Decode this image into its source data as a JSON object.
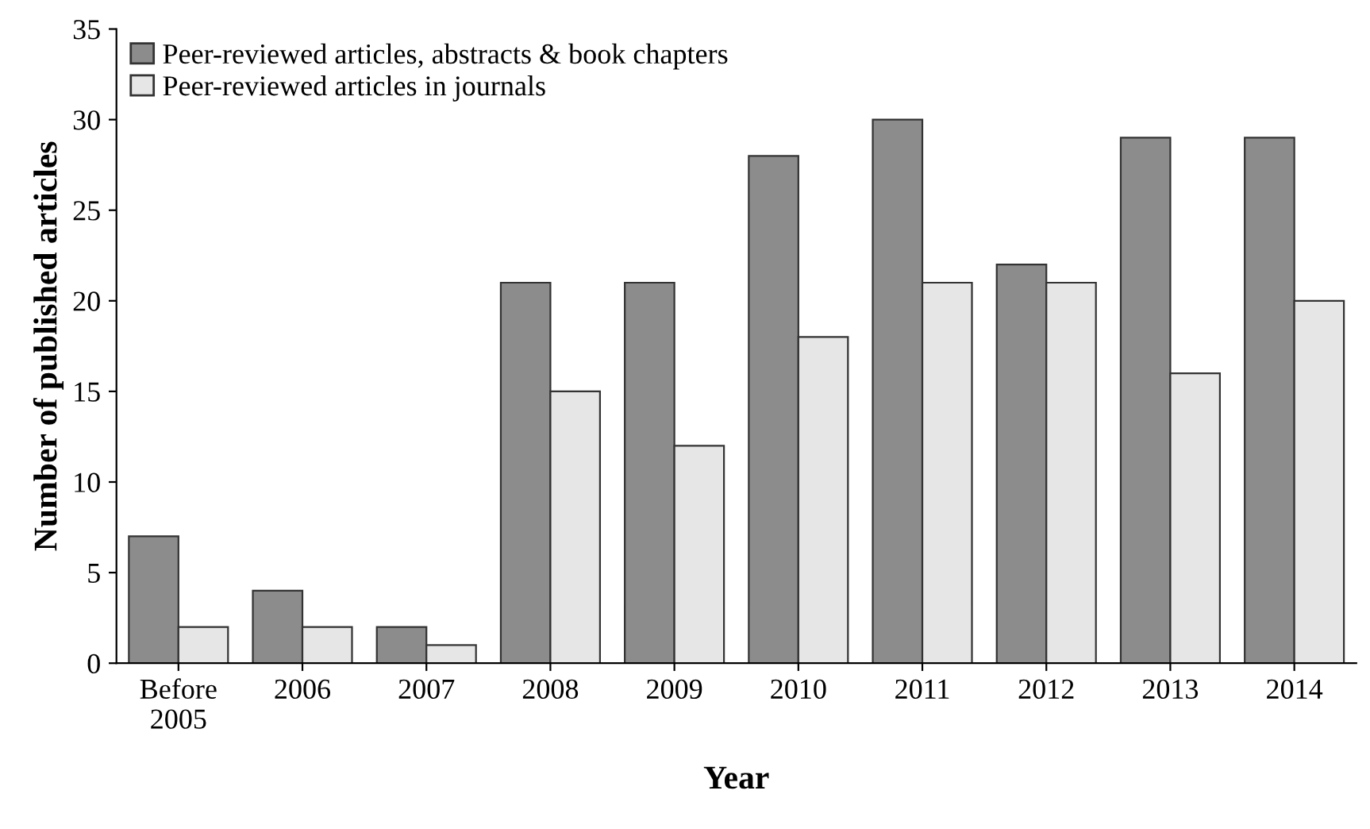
{
  "chart_data": {
    "type": "bar",
    "xlabel": "Year",
    "ylabel": "Number of published articles",
    "categories": [
      "Before\n2005",
      "2006",
      "2007",
      "2008",
      "2009",
      "2010",
      "2011",
      "2012",
      "2013",
      "2014"
    ],
    "series": [
      {
        "name": "Peer-reviewed articles, abstracts & book chapters",
        "color": "#8c8c8c",
        "values": [
          7,
          4,
          2,
          21,
          21,
          28,
          30,
          22,
          29,
          29
        ]
      },
      {
        "name": "Peer-reviewed articles in journals",
        "color": "#e6e6e6",
        "values": [
          2,
          2,
          1,
          15,
          12,
          18,
          21,
          21,
          16,
          20
        ]
      }
    ],
    "ylim": [
      0,
      35
    ],
    "yticks": [
      0,
      5,
      10,
      15,
      20,
      25,
      30,
      35
    ],
    "grid": false,
    "legend": "top left"
  }
}
